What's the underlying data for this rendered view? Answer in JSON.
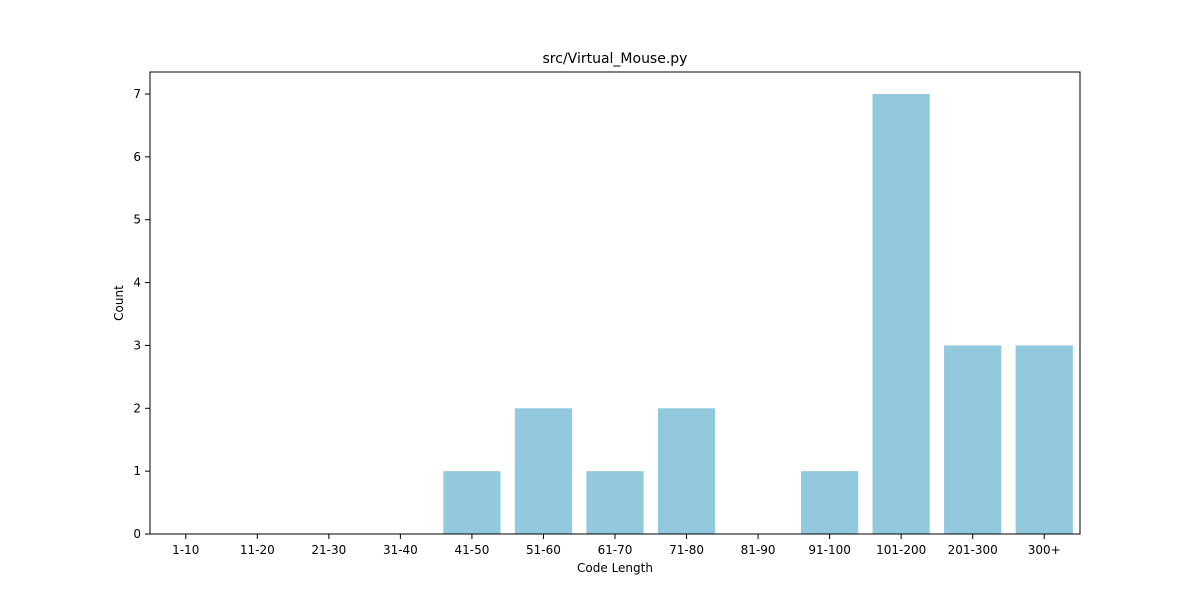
{
  "chart_data": {
    "type": "bar",
    "title": "src/Virtual_Mouse.py",
    "xlabel": "Code Length",
    "ylabel": "Count",
    "categories": [
      "1-10",
      "11-20",
      "21-30",
      "31-40",
      "41-50",
      "51-60",
      "61-70",
      "71-80",
      "81-90",
      "91-100",
      "101-200",
      "201-300",
      "300+"
    ],
    "values": [
      0,
      0,
      0,
      0,
      1,
      2,
      1,
      2,
      0,
      1,
      7,
      3,
      3
    ],
    "ylim": [
      0,
      7.35
    ],
    "yticks": [
      0,
      1,
      2,
      3,
      4,
      5,
      6,
      7
    ],
    "bar_color": "#92c9de",
    "grid": false,
    "legend": "none"
  }
}
